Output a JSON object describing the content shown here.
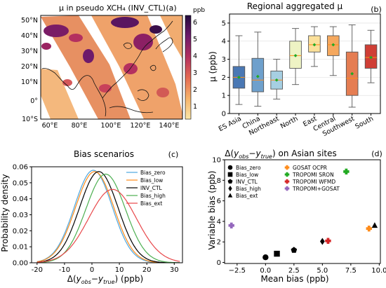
{
  "colors": {
    "box_fills": [
      "#4a78b4",
      "#6ea0cc",
      "#a6cfe2",
      "#eef3c4",
      "#fbe09a",
      "#f5a85e",
      "#e57d52",
      "#cf3e35"
    ],
    "mean_marker": "#22aa22",
    "median_line": "#ff8c1a",
    "map_cmap": [
      "#fbe6a8",
      "#f6b36a",
      "#e56b52",
      "#b4305f",
      "#6e1a6b",
      "#220b3d"
    ],
    "bias_series": [
      "#4da6df",
      "#ff8c1a",
      "#000000",
      "#4caf50",
      "#e8474a"
    ],
    "site_markers": [
      "#ff8c1a",
      "#22aa22",
      "#d62728",
      "#9467bd"
    ]
  },
  "panel_a": {
    "title": "μ in pseudo XCH₄ (INV_CTL)",
    "label": "(a)",
    "colorbar_label": "ppb",
    "colorbar_ticks": [
      "1",
      "2",
      "3",
      "4",
      "5",
      "6"
    ],
    "lat_ticks": [
      "50°N",
      "40°N",
      "30°N",
      "20°N",
      "10°N",
      "0°",
      "10°S"
    ],
    "lon_ticks": [
      "60°E",
      "80°E",
      "100°E",
      "120°E",
      "140°E"
    ]
  },
  "chart_data": [
    {
      "panel": "b",
      "type": "box",
      "title": "Regional aggregated μ",
      "label": "(b)",
      "ylabel": "μ (ppb)",
      "ylim": [
        0,
        5.5
      ],
      "yticks": [
        "0",
        "1",
        "2",
        "3",
        "4",
        "5"
      ],
      "categories": [
        "ES Asia",
        "China",
        "Northeast",
        "North",
        "East",
        "Central",
        "Southwest",
        "South"
      ],
      "boxes": [
        {
          "whislo": 0.5,
          "q1": 1.4,
          "med": 2.0,
          "q3": 2.6,
          "whishi": 4.3,
          "mean": 2.0
        },
        {
          "whislo": 0.4,
          "q1": 1.2,
          "med": 1.85,
          "q3": 3.05,
          "whishi": 4.5,
          "mean": 2.05
        },
        {
          "whislo": 0.8,
          "q1": 1.35,
          "med": 1.85,
          "q3": 2.35,
          "whishi": 3.0,
          "mean": 1.85
        },
        {
          "whislo": 1.6,
          "q1": 2.5,
          "med": 3.2,
          "q3": 4.0,
          "whishi": 4.7,
          "mean": 3.2
        },
        {
          "whislo": 2.6,
          "q1": 3.4,
          "med": 3.8,
          "q3": 4.3,
          "whishi": 4.8,
          "mean": 3.8
        },
        {
          "whislo": 2.1,
          "q1": 3.2,
          "med": 3.8,
          "q3": 4.3,
          "whishi": 4.8,
          "mean": 3.8
        },
        {
          "whislo": 0.35,
          "q1": 1.0,
          "med": 1.95,
          "q3": 3.4,
          "whishi": 4.9,
          "mean": 2.2
        },
        {
          "whislo": 1.7,
          "q1": 2.5,
          "med": 3.1,
          "q3": 3.8,
          "whishi": 4.6,
          "mean": 3.1
        }
      ]
    },
    {
      "panel": "c",
      "type": "line",
      "title": "Bias scenarios",
      "label": "(c)",
      "xlabel": "Δ(y_obs−y_true) (ppb)",
      "ylabel": "Probability density",
      "xlim": [
        -22,
        33
      ],
      "ylim": [
        0,
        0.06
      ],
      "xticks": [
        "-20",
        "-10",
        "0",
        "10",
        "20",
        "30"
      ],
      "yticks": [
        "0.00",
        "0.01",
        "0.02",
        "0.03",
        "0.04",
        "0.05",
        "0.06"
      ],
      "series": [
        {
          "name": "Bias_zero",
          "mean": 0.5,
          "sd": 6.9
        },
        {
          "name": "Bias_low",
          "mean": 1.0,
          "sd": 7.0
        },
        {
          "name": "INV_CTL",
          "mean": 2.5,
          "sd": 7.0
        },
        {
          "name": "Bias_high",
          "mean": 5.0,
          "sd": 7.2
        },
        {
          "name": "Bias_ext",
          "mean": 7.5,
          "sd": 8.7
        }
      ]
    },
    {
      "panel": "d",
      "type": "scatter",
      "title": "Δ(y_obs−y_true) on Asian sites",
      "label": "(d)",
      "xlabel": "Mean bias (ppb)",
      "ylabel": "Variable bias (ppb)",
      "xlim": [
        -3.6,
        10.1
      ],
      "ylim": [
        -0.1,
        10
      ],
      "xticks": [
        "−2.5",
        "0.0",
        "2.5",
        "5.0",
        "7.5",
        "10.0"
      ],
      "yticks": [
        "0",
        "2",
        "4",
        "6",
        "8",
        "10"
      ],
      "points": [
        {
          "name": "Bias_zero",
          "marker": "circle",
          "x": 0.0,
          "y": 0.5
        },
        {
          "name": "Bias_low",
          "marker": "square",
          "x": 1.0,
          "y": 0.85
        },
        {
          "name": "INV_CTL",
          "marker": "pentagon",
          "x": 2.5,
          "y": 1.2
        },
        {
          "name": "Bias_high",
          "marker": "diamond",
          "x": 5.0,
          "y": 2.05
        },
        {
          "name": "Bias_ext",
          "marker": "triangle",
          "x": 9.6,
          "y": 3.6
        },
        {
          "name": "GOSAT OCPR",
          "marker": "plus",
          "x": 9.1,
          "y": 3.3
        },
        {
          "name": "TROPOMI SRON",
          "marker": "plus",
          "x": 7.1,
          "y": 8.85
        },
        {
          "name": "TROPOMI WFMD",
          "marker": "plus",
          "x": 5.5,
          "y": 2.1
        },
        {
          "name": "TROPOMI+GOSAT",
          "marker": "plus",
          "x": -3.0,
          "y": 3.6
        }
      ]
    }
  ]
}
